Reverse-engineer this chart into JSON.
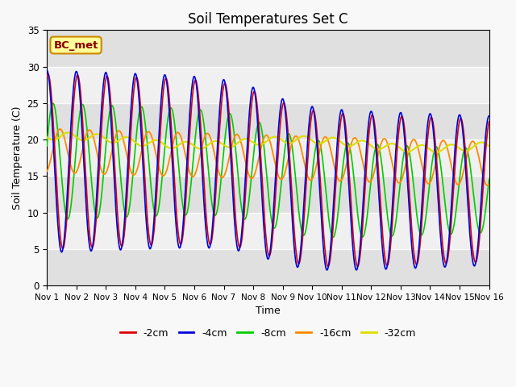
{
  "title": "Soil Temperatures Set C",
  "xlabel": "Time",
  "ylabel": "Soil Temperature (C)",
  "xlim": [
    0,
    15
  ],
  "ylim": [
    0,
    35
  ],
  "yticks": [
    0,
    5,
    10,
    15,
    20,
    25,
    30,
    35
  ],
  "xtick_labels": [
    "Nov 1",
    "Nov 2",
    "Nov 3",
    "Nov 4",
    "Nov 5",
    "Nov 6",
    "Nov 7",
    "Nov 8",
    "Nov 9",
    "Nov 10",
    "Nov 11",
    "Nov 12",
    "Nov 13",
    "Nov 14",
    "Nov 15",
    "Nov 16"
  ],
  "legend_labels": [
    "-2cm",
    "-4cm",
    "-8cm",
    "-16cm",
    "-32cm"
  ],
  "colors": {
    "-2cm": "#dd0000",
    "-4cm": "#0000dd",
    "-8cm": "#00cc00",
    "-16cm": "#ff8800",
    "-32cm": "#dddd00"
  },
  "annotation_text": "BC_met",
  "annotation_bg": "#ffff99",
  "annotation_border": "#cc8800",
  "bg_color": "#e0e0e0",
  "bg_color2": "#d0d0d0",
  "title_fontsize": 12
}
